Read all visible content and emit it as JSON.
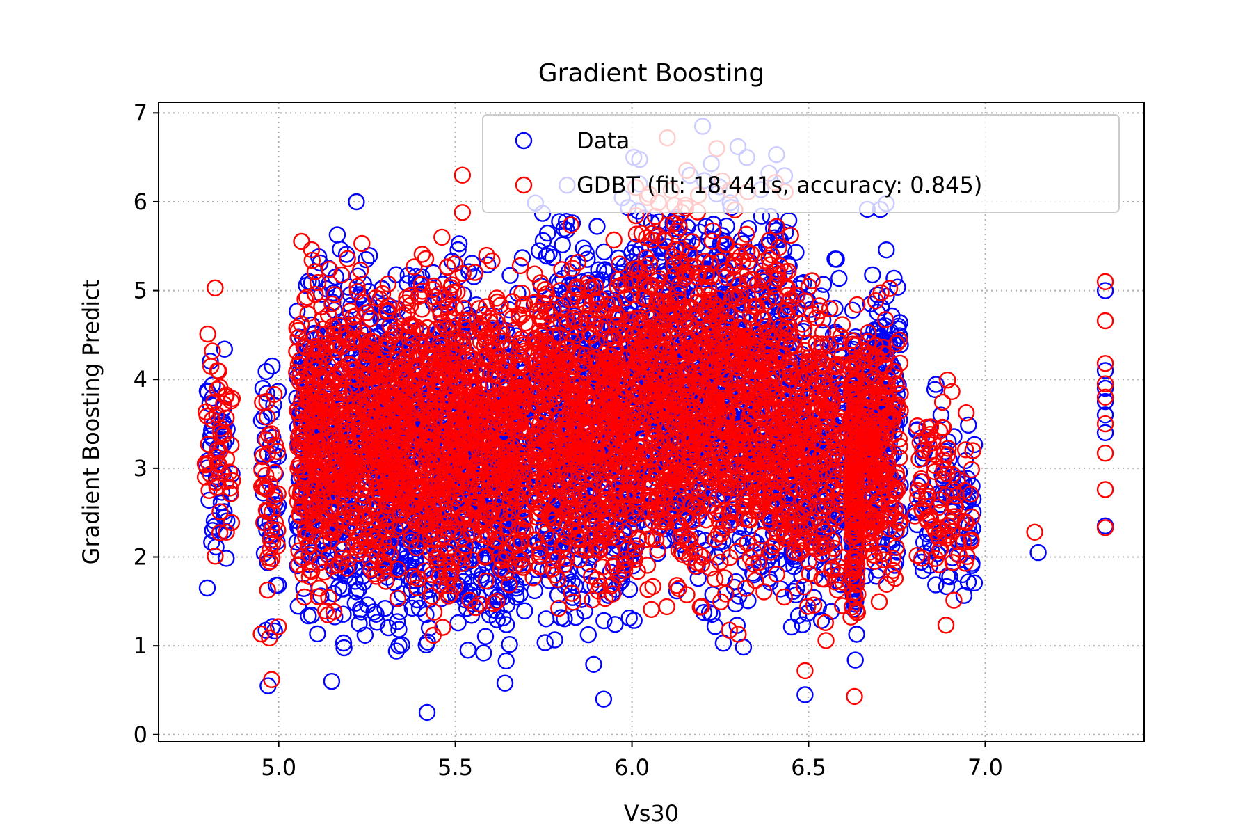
{
  "chart_data": {
    "type": "scatter",
    "title": "Gradient Boosting",
    "xlabel": "Vs30",
    "ylabel": "Gradient Boosting Predict",
    "xlim": [
      4.66,
      7.45
    ],
    "ylim": [
      -0.08,
      7.12
    ],
    "xticks": [
      5.0,
      5.5,
      6.0,
      6.5,
      7.0
    ],
    "xtick_labels": [
      "5.0",
      "5.5",
      "6.0",
      "6.5",
      "7.0"
    ],
    "yticks": [
      0,
      1,
      2,
      3,
      4,
      5,
      6,
      7
    ],
    "ytick_labels": [
      "0",
      "1",
      "2",
      "3",
      "4",
      "5",
      "6",
      "7"
    ],
    "grid": true,
    "legend_position": "top-right",
    "marker": "open-circle",
    "series": [
      {
        "name": "Data",
        "color": "#0000ff",
        "clusters": [
          {
            "x": [
              4.79,
              4.87
            ],
            "y": [
              1.2,
              4.8
            ],
            "n": 50
          },
          {
            "x": [
              4.95,
              5.0
            ],
            "y": [
              0.5,
              4.8
            ],
            "n": 40
          },
          {
            "x": [
              5.05,
              5.3
            ],
            "y": [
              0.6,
              6.0
            ],
            "n": 550
          },
          {
            "x": [
              5.3,
              5.7
            ],
            "y": [
              0.2,
              5.9
            ],
            "n": 950
          },
          {
            "x": [
              5.72,
              6.0
            ],
            "y": [
              0.4,
              6.6
            ],
            "n": 650
          },
          {
            "x": [
              6.0,
              6.45
            ],
            "y": [
              0.8,
              6.9
            ],
            "n": 1050
          },
          {
            "x": [
              6.45,
              6.6
            ],
            "y": [
              0.4,
              5.9
            ],
            "n": 260
          },
          {
            "x": [
              6.62,
              6.64
            ],
            "y": [
              0.4,
              5.5
            ],
            "n": 160
          },
          {
            "x": [
              6.65,
              6.76
            ],
            "y": [
              1.1,
              6.0
            ],
            "n": 220
          },
          {
            "x": [
              6.8,
              6.97
            ],
            "y": [
              1.0,
              4.4
            ],
            "n": 90
          }
        ],
        "points": [
          {
            "x": 7.15,
            "y": 2.05
          },
          {
            "x": 7.34,
            "y": 2.35
          },
          {
            "x": 7.34,
            "y": 3.4
          },
          {
            "x": 7.34,
            "y": 3.6
          },
          {
            "x": 7.34,
            "y": 3.75
          },
          {
            "x": 7.34,
            "y": 3.9
          },
          {
            "x": 7.34,
            "y": 4.1
          },
          {
            "x": 7.34,
            "y": 5.0
          },
          {
            "x": 5.42,
            "y": 0.25
          },
          {
            "x": 5.92,
            "y": 0.4
          },
          {
            "x": 6.2,
            "y": 6.85
          },
          {
            "x": 6.3,
            "y": 6.62
          },
          {
            "x": 6.72,
            "y": 5.98
          },
          {
            "x": 5.22,
            "y": 6.0
          },
          {
            "x": 6.49,
            "y": 0.45
          },
          {
            "x": 5.58,
            "y": 0.92
          },
          {
            "x": 4.97,
            "y": 0.55
          },
          {
            "x": 5.15,
            "y": 0.6
          }
        ]
      },
      {
        "name": "GDBT (fit: 18.441s, accuracy: 0.845)",
        "color": "#ff0000",
        "clusters": [
          {
            "x": [
              4.79,
              4.87
            ],
            "y": [
              1.6,
              5.05
            ],
            "n": 50
          },
          {
            "x": [
              4.95,
              5.0
            ],
            "y": [
              0.6,
              4.7
            ],
            "n": 40
          },
          {
            "x": [
              5.05,
              5.3
            ],
            "y": [
              0.9,
              5.8
            ],
            "n": 550
          },
          {
            "x": [
              5.3,
              5.7
            ],
            "y": [
              0.95,
              5.9
            ],
            "n": 950
          },
          {
            "x": [
              5.72,
              6.0
            ],
            "y": [
              0.95,
              6.0
            ],
            "n": 650
          },
          {
            "x": [
              6.0,
              6.45
            ],
            "y": [
              0.8,
              6.75
            ],
            "n": 1050
          },
          {
            "x": [
              6.45,
              6.6
            ],
            "y": [
              0.7,
              5.8
            ],
            "n": 260
          },
          {
            "x": [
              6.62,
              6.64
            ],
            "y": [
              0.45,
              5.3
            ],
            "n": 160
          },
          {
            "x": [
              6.65,
              6.76
            ],
            "y": [
              1.1,
              5.3
            ],
            "n": 220
          },
          {
            "x": [
              6.8,
              6.97
            ],
            "y": [
              1.0,
              4.4
            ],
            "n": 90
          }
        ],
        "points": [
          {
            "x": 7.14,
            "y": 2.28
          },
          {
            "x": 7.34,
            "y": 2.33
          },
          {
            "x": 7.34,
            "y": 2.76
          },
          {
            "x": 7.34,
            "y": 3.17
          },
          {
            "x": 7.34,
            "y": 3.5
          },
          {
            "x": 7.34,
            "y": 3.8
          },
          {
            "x": 7.34,
            "y": 3.95
          },
          {
            "x": 7.34,
            "y": 4.18
          },
          {
            "x": 7.34,
            "y": 4.66
          },
          {
            "x": 7.34,
            "y": 5.1
          },
          {
            "x": 5.52,
            "y": 6.3
          },
          {
            "x": 5.52,
            "y": 5.88
          },
          {
            "x": 6.1,
            "y": 6.72
          },
          {
            "x": 6.24,
            "y": 6.6
          },
          {
            "x": 4.82,
            "y": 5.03
          },
          {
            "x": 4.98,
            "y": 0.62
          },
          {
            "x": 6.49,
            "y": 0.72
          },
          {
            "x": 6.63,
            "y": 0.43
          }
        ]
      }
    ]
  }
}
